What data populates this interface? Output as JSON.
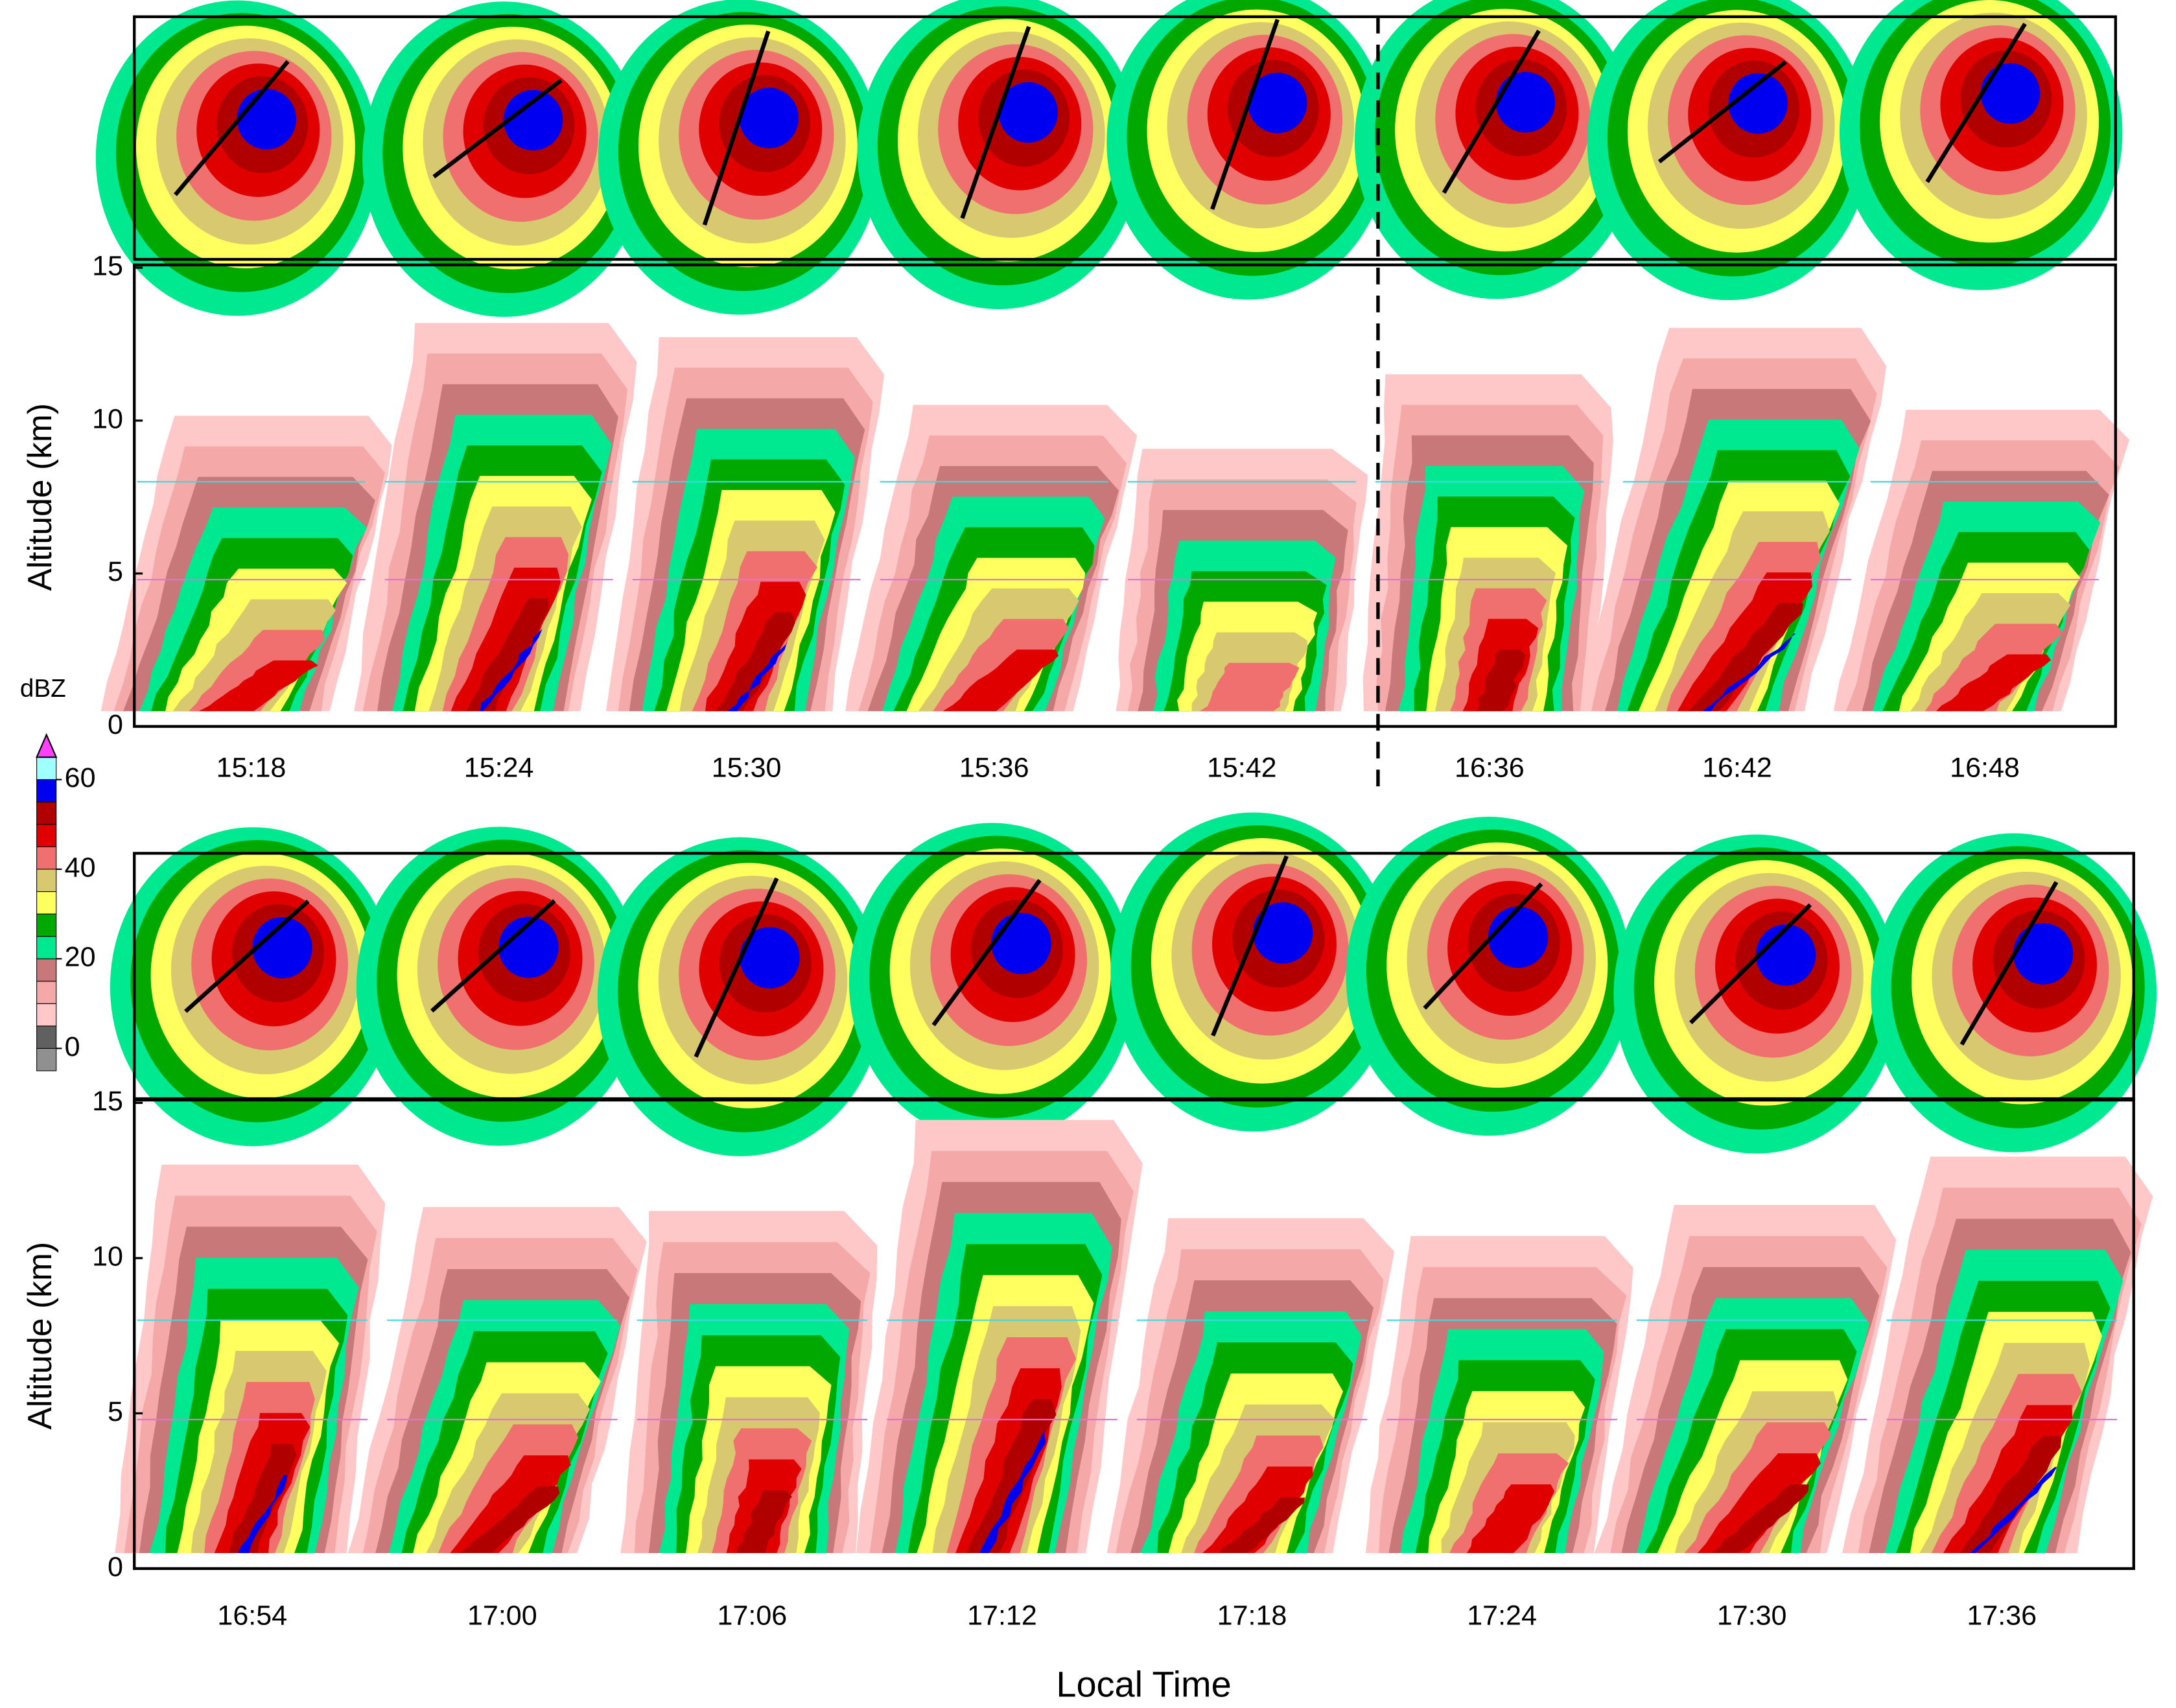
{
  "chart_data": {
    "type": "radar-cross-sections",
    "ylabel": "Altitude (km)",
    "xlabel": "Local Time",
    "ylim": [
      0,
      15
    ],
    "yticks": [
      0,
      5,
      10,
      15
    ],
    "reference_lines": [
      {
        "value": 8,
        "color": "#40d8e0"
      },
      {
        "value": 4.8,
        "color": "#e070e0"
      }
    ],
    "panels": [
      {
        "categories": [
          "15:18",
          "15:24",
          "15:30",
          "15:36",
          "15:42",
          "16:36",
          "16:42",
          "16:48"
        ]
      },
      {
        "categories": [
          "16:54",
          "17:00",
          "17:06",
          "17:12",
          "17:18",
          "17:24",
          "17:30",
          "17:36"
        ]
      }
    ],
    "colorbar": {
      "label": "dBZ",
      "bins": [
        -5,
        0,
        5,
        10,
        15,
        20,
        25,
        30,
        35,
        40,
        45,
        50,
        55,
        60,
        65,
        70
      ],
      "colors": [
        "#909090",
        "#606060",
        "#ffc8c8",
        "#f4a8a8",
        "#c87878",
        "#00e890",
        "#00a800",
        "#ffff60",
        "#d8c870",
        "#f07070",
        "#e00000",
        "#b00000",
        "#0000f0",
        "#a0ffff",
        "#ff40ff"
      ],
      "ticks": [
        0,
        20,
        40,
        60
      ]
    }
  }
}
